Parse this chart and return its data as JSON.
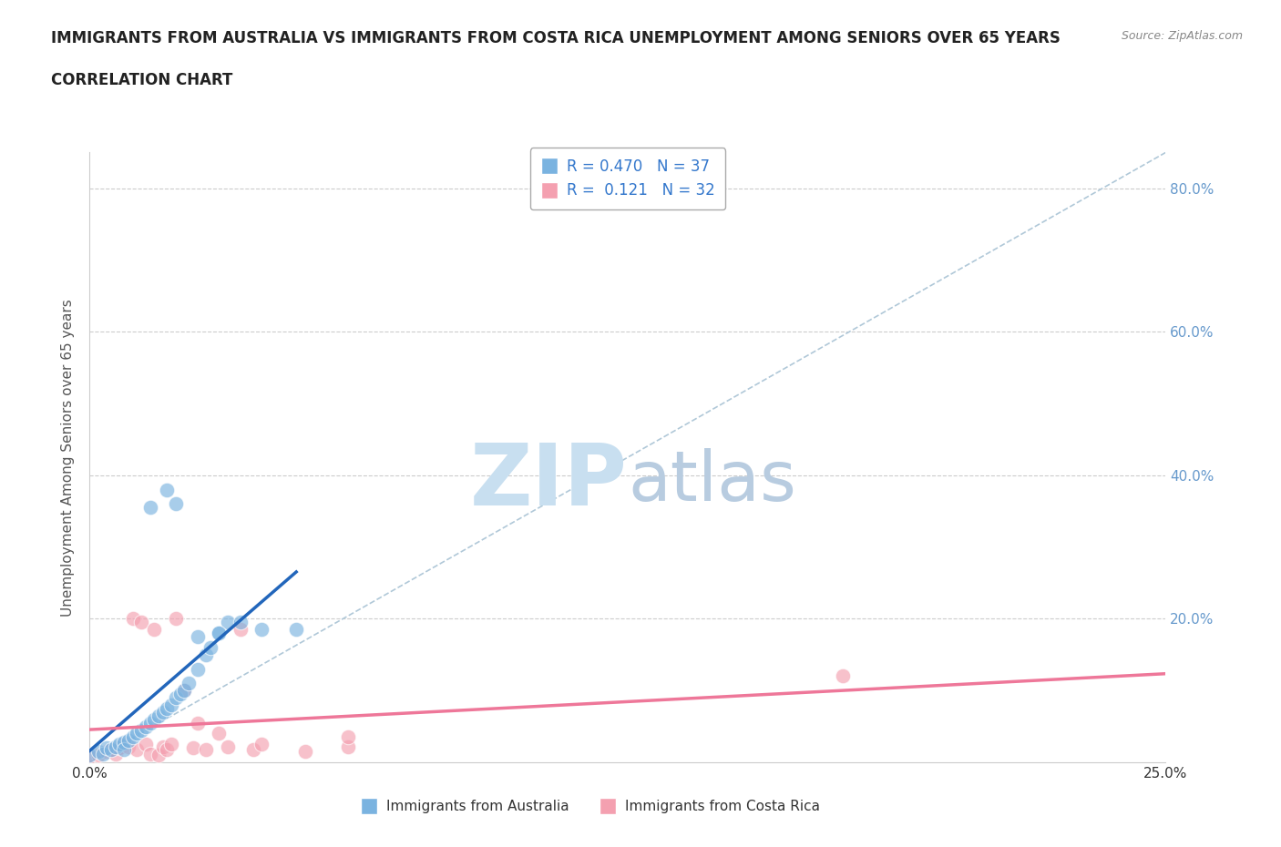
{
  "title_line1": "IMMIGRANTS FROM AUSTRALIA VS IMMIGRANTS FROM COSTA RICA UNEMPLOYMENT AMONG SENIORS OVER 65 YEARS",
  "title_line2": "CORRELATION CHART",
  "source": "Source: ZipAtlas.com",
  "ylabel": "Unemployment Among Seniors over 65 years",
  "xlim": [
    0.0,
    0.25
  ],
  "ylim": [
    0.0,
    0.85
  ],
  "right_yticks": [
    0.2,
    0.4,
    0.6,
    0.8
  ],
  "right_yticklabels": [
    "20.0%",
    "40.0%",
    "60.0%",
    "80.0%"
  ],
  "australia_R": 0.47,
  "australia_N": 37,
  "costarica_R": 0.121,
  "costarica_N": 32,
  "australia_color": "#7ab3e0",
  "costarica_color": "#f4a0b0",
  "australia_line_color": "#2266bb",
  "costarica_line_color": "#ee7799",
  "australia_x": [
    0.0,
    0.002,
    0.003,
    0.004,
    0.005,
    0.006,
    0.007,
    0.008,
    0.008,
    0.009,
    0.01,
    0.011,
    0.012,
    0.013,
    0.014,
    0.015,
    0.016,
    0.017,
    0.018,
    0.019,
    0.02,
    0.021,
    0.022,
    0.023,
    0.025,
    0.027,
    0.028,
    0.03,
    0.032,
    0.014,
    0.018,
    0.02,
    0.025,
    0.03,
    0.035,
    0.04,
    0.048
  ],
  "australia_y": [
    0.01,
    0.015,
    0.012,
    0.02,
    0.018,
    0.022,
    0.025,
    0.028,
    0.018,
    0.03,
    0.035,
    0.04,
    0.045,
    0.05,
    0.055,
    0.06,
    0.065,
    0.07,
    0.075,
    0.08,
    0.09,
    0.095,
    0.1,
    0.11,
    0.13,
    0.15,
    0.16,
    0.18,
    0.195,
    0.355,
    0.38,
    0.36,
    0.175,
    0.18,
    0.195,
    0.185,
    0.185
  ],
  "costarica_x": [
    0.0,
    0.002,
    0.004,
    0.005,
    0.006,
    0.007,
    0.008,
    0.009,
    0.01,
    0.011,
    0.012,
    0.013,
    0.014,
    0.015,
    0.016,
    0.017,
    0.018,
    0.019,
    0.02,
    0.022,
    0.024,
    0.025,
    0.027,
    0.03,
    0.032,
    0.035,
    0.038,
    0.04,
    0.05,
    0.06,
    0.175,
    0.06
  ],
  "costarica_y": [
    0.008,
    0.01,
    0.015,
    0.018,
    0.012,
    0.02,
    0.025,
    0.022,
    0.2,
    0.018,
    0.195,
    0.025,
    0.012,
    0.185,
    0.01,
    0.022,
    0.018,
    0.025,
    0.2,
    0.1,
    0.02,
    0.055,
    0.018,
    0.04,
    0.022,
    0.185,
    0.018,
    0.025,
    0.015,
    0.022,
    0.12,
    0.035
  ],
  "background_color": "#ffffff",
  "grid_color": "#cccccc",
  "watermark_zip": "ZIP",
  "watermark_atlas": "atlas",
  "watermark_color_zip": "#c8dff0",
  "watermark_color_atlas": "#b8cce0",
  "title_fontsize": 12,
  "title_color": "#222222",
  "axis_label_color": "#555555",
  "tick_label_color_right": "#6699cc",
  "legend_label_color": "#3377cc"
}
